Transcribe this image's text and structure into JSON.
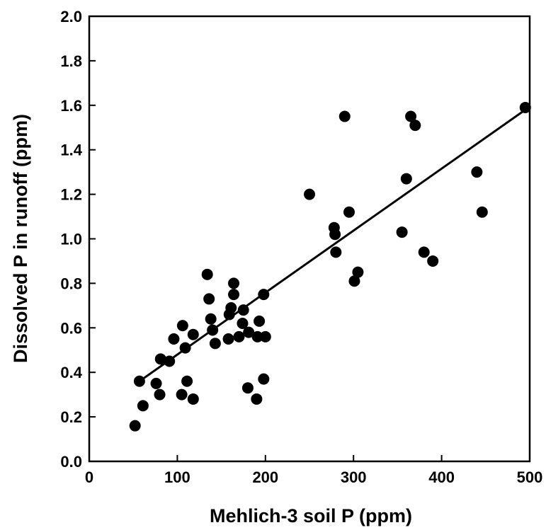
{
  "chart_data": {
    "type": "scatter",
    "title": "",
    "xlabel": "Mehlich-3 soil P (ppm)",
    "ylabel": "Dissolved P in runoff (ppm)",
    "xlim": [
      0,
      500
    ],
    "ylim": [
      0.0,
      2.0
    ],
    "xticks": [
      "0",
      "100",
      "200",
      "300",
      "400",
      "500"
    ],
    "yticks": [
      "0.0",
      "0.2",
      "0.4",
      "0.6",
      "0.8",
      "1.0",
      "1.2",
      "1.4",
      "1.6",
      "1.8",
      "2.0"
    ],
    "grid": false,
    "legend": "none",
    "point_color": "#000000",
    "points": [
      [
        52,
        0.16
      ],
      [
        57,
        0.36
      ],
      [
        61,
        0.25
      ],
      [
        76,
        0.35
      ],
      [
        80,
        0.3
      ],
      [
        81,
        0.46
      ],
      [
        91,
        0.45
      ],
      [
        96,
        0.55
      ],
      [
        105,
        0.3
      ],
      [
        106,
        0.61
      ],
      [
        109,
        0.51
      ],
      [
        111,
        0.36
      ],
      [
        118,
        0.28
      ],
      [
        118,
        0.57
      ],
      [
        134,
        0.84
      ],
      [
        136,
        0.73
      ],
      [
        138,
        0.64
      ],
      [
        140,
        0.59
      ],
      [
        143,
        0.53
      ],
      [
        158,
        0.55
      ],
      [
        159,
        0.66
      ],
      [
        161,
        0.69
      ],
      [
        164,
        0.75
      ],
      [
        164,
        0.8
      ],
      [
        170,
        0.56
      ],
      [
        174,
        0.62
      ],
      [
        175,
        0.68
      ],
      [
        180,
        0.33
      ],
      [
        181,
        0.58
      ],
      [
        190,
        0.28
      ],
      [
        191,
        0.56
      ],
      [
        193,
        0.63
      ],
      [
        198,
        0.37
      ],
      [
        198,
        0.75
      ],
      [
        200,
        0.56
      ],
      [
        250,
        1.2
      ],
      [
        278,
        1.05
      ],
      [
        279,
        1.02
      ],
      [
        280,
        0.94
      ],
      [
        290,
        1.55
      ],
      [
        295,
        1.12
      ],
      [
        301,
        0.81
      ],
      [
        305,
        0.85
      ],
      [
        355,
        1.03
      ],
      [
        360,
        1.27
      ],
      [
        365,
        1.55
      ],
      [
        370,
        1.51
      ],
      [
        380,
        0.94
      ],
      [
        390,
        0.9
      ],
      [
        440,
        1.3
      ],
      [
        446,
        1.12
      ],
      [
        495,
        1.59
      ]
    ],
    "trendline": {
      "type": "linear",
      "x": [
        57,
        495
      ],
      "y": [
        0.36,
        1.58
      ]
    }
  }
}
